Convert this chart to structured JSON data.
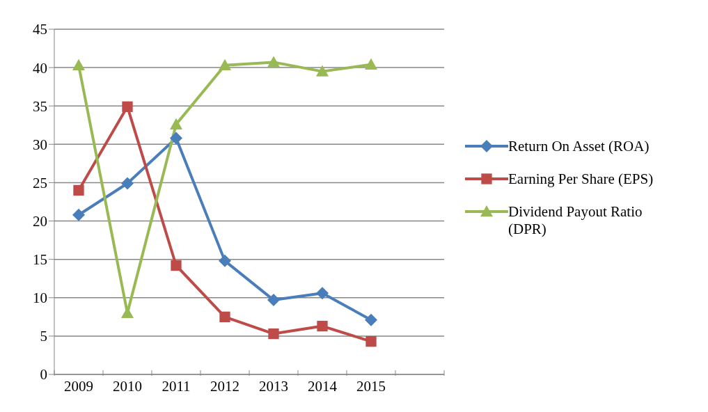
{
  "chart_data": {
    "type": "line",
    "categories": [
      "2009",
      "2010",
      "2011",
      "2012",
      "2013",
      "2014",
      "2015",
      null
    ],
    "series": [
      {
        "name": "Return On Asset (ROA)",
        "color": "#4a7ebb",
        "marker": "diamond",
        "values": [
          20.8,
          24.9,
          30.8,
          14.8,
          9.7,
          10.6,
          7.1,
          null
        ]
      },
      {
        "name": "Earning Per Share (EPS)",
        "color": "#be4b48",
        "marker": "square",
        "values": [
          24,
          34.9,
          14.2,
          7.5,
          5.3,
          6.3,
          4.3,
          null
        ]
      },
      {
        "name": "Dividend Payout Ratio (DPR)",
        "color": "#98b954",
        "marker": "triangle",
        "values": [
          40.3,
          8,
          32.6,
          40.3,
          40.7,
          39.5,
          40.4,
          null
        ]
      }
    ],
    "ylim": [
      0,
      45
    ],
    "yticks": [
      0,
      5,
      10,
      15,
      20,
      25,
      30,
      35,
      40,
      45
    ],
    "grid": "y",
    "legend": "right",
    "line_style": "solid"
  }
}
